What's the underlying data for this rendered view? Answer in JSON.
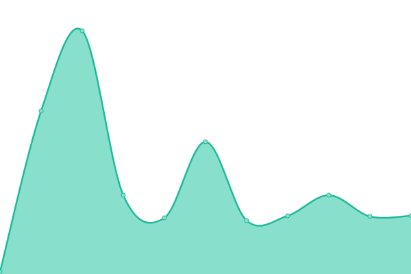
{
  "chart_data": {
    "type": "area",
    "categories": [
      null,
      null,
      null,
      null,
      null,
      null,
      null,
      null,
      null,
      null,
      null
    ],
    "values": [
      3,
      238,
      355,
      115,
      82,
      193,
      78,
      85,
      115,
      84,
      85
    ],
    "ylim": [
      0,
      400
    ],
    "color": "#1fb99a",
    "fill_color": "#88e0cc"
  }
}
